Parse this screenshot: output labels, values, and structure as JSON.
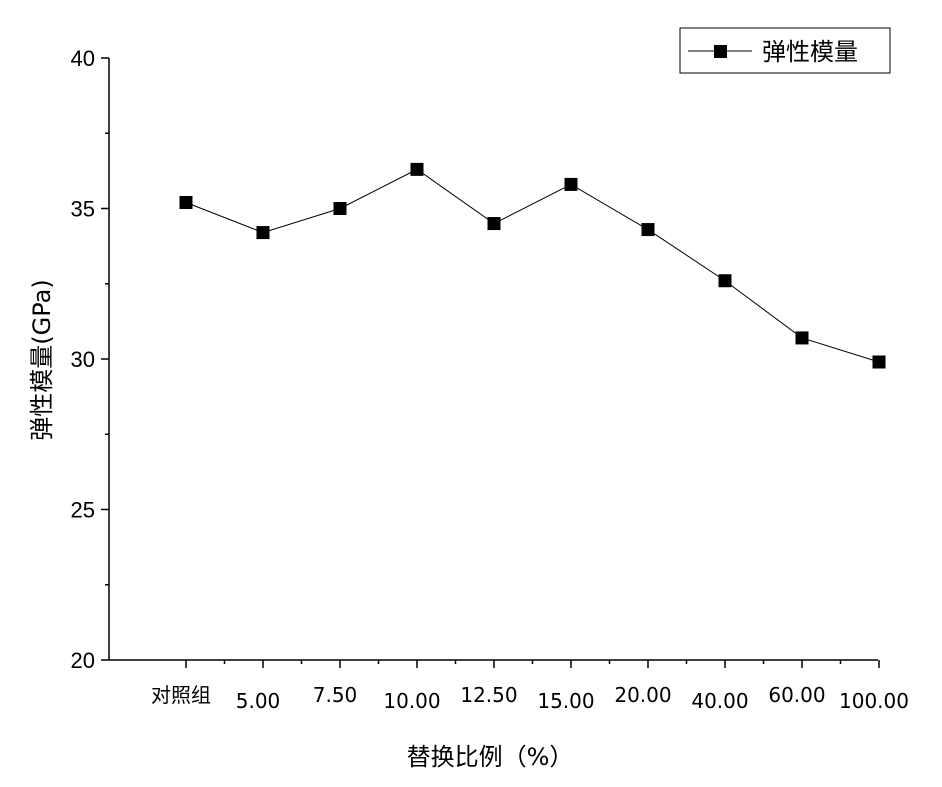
{
  "chart_data": {
    "type": "line",
    "categories": [
      "对照组",
      "5.00",
      "7.50",
      "10.00",
      "12.50",
      "15.00",
      "20.00",
      "40.00",
      "60.00",
      "100.00"
    ],
    "series": [
      {
        "name": "弹性模量",
        "values": [
          35.2,
          34.2,
          35.0,
          36.3,
          34.5,
          35.8,
          34.3,
          32.6,
          30.7,
          29.9
        ]
      }
    ],
    "xlabel": "替换比例（%）",
    "ylabel": "弹性模量(GPa)",
    "ylim": [
      20,
      40
    ],
    "yticks": [
      20,
      25,
      30,
      35,
      40
    ],
    "grid": false,
    "legend_position": "top-right",
    "colors": {
      "line": "#000000",
      "marker": "#000000"
    }
  }
}
